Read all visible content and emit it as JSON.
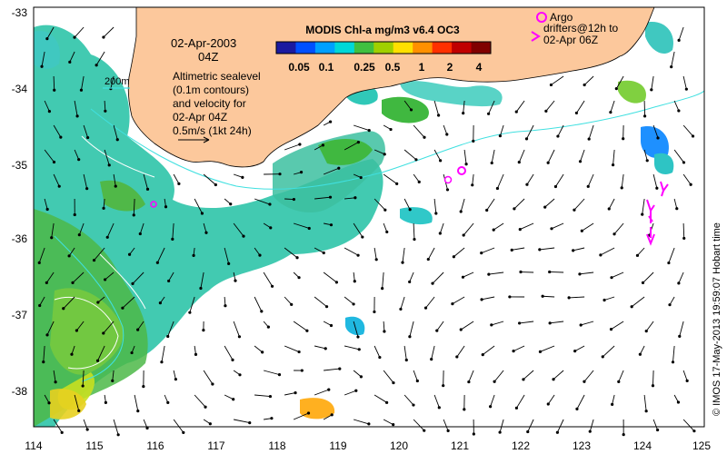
{
  "title": "MODIS Chl-a mg/m3 v6.4 OC3",
  "colorbar": {
    "ticks": [
      "0.05",
      "0.1",
      "0.25",
      "0.5",
      "1",
      "2",
      "4"
    ],
    "colors": [
      "#1a1aa0",
      "#0050ff",
      "#00a0ff",
      "#00d8d8",
      "#40c040",
      "#a0d000",
      "#ffe000",
      "#ff9000",
      "#ff3000",
      "#c00000",
      "#800000"
    ]
  },
  "info": {
    "date": "02-Apr-2003",
    "hour": "04Z",
    "contour_legend": "200m",
    "sealevel_text": [
      "Altimetric sealevel",
      "(0.1m contours)",
      "and velocity for",
      "02-Apr 04Z",
      "0.5m/s (1kt 24h)"
    ]
  },
  "argo": {
    "line1": "Argo",
    "line2": "drifters@12h to",
    "line3": "02-Apr 06Z"
  },
  "credit": "© IMOS 17-May-2013 19:59:07 Hobart time",
  "axes": {
    "x_ticks": [
      "114",
      "115",
      "116",
      "117",
      "118",
      "119",
      "120",
      "121",
      "122",
      "123",
      "124",
      "125"
    ],
    "y_ticks": [
      "-33",
      "-34",
      "-35",
      "-36",
      "-37",
      "-38"
    ]
  },
  "colors": {
    "land": "#fcc89c",
    "coast": "#000000",
    "ocean": "#ffffff",
    "contour": "#40e0e0",
    "drifter": "#ff00ff"
  }
}
